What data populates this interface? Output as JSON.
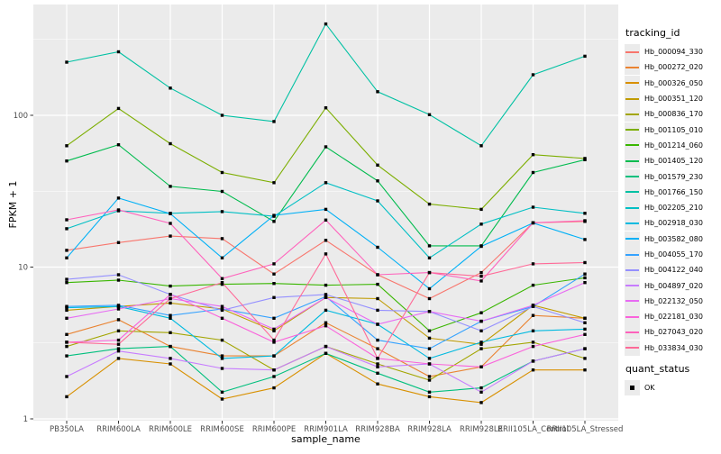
{
  "figure": {
    "x_axis": {
      "label": "sample_name"
    },
    "y_axis": {
      "label": "FPKM + 1",
      "ticks": [
        "1",
        "10",
        "100"
      ],
      "tick_values": [
        1,
        10,
        100
      ]
    },
    "legend": {
      "tracking_title": "tracking_id",
      "quant_title": "quant_status",
      "quant_value": "OK"
    },
    "colors": {
      "panel_bg": "#ebebeb",
      "grid": "#ffffff",
      "tick_text": "#4d4d4d",
      "marker": "#000000"
    }
  },
  "chart_data": {
    "type": "line",
    "title": "",
    "xlabel": "sample_name",
    "ylabel": "FPKM + 1",
    "yscale": "log10",
    "ylim": [
      1,
      530
    ],
    "grid": "on",
    "legend_position": "right",
    "marker": "black-square",
    "x": [
      "PB350LA",
      "RRIM600LA",
      "RRIM600LE",
      "RRIM600SE",
      "RRIM600PE",
      "RRIM901LA",
      "RRIM928BA",
      "RRIM928LA",
      "RRIM928LE",
      "RRII105LA_Control",
      "RRII105LA_Stressed"
    ],
    "series": [
      {
        "name": "Hb_000094_330",
        "color": "#F8766D",
        "values": [
          12.9,
          14.5,
          16,
          15.4,
          9,
          15,
          8.9,
          6.2,
          9.2,
          19.6,
          20
        ]
      },
      {
        "name": "Hb_000272_020",
        "color": "#EA8331",
        "values": [
          3.6,
          4.5,
          3,
          2.6,
          2.6,
          4.3,
          2.9,
          1.9,
          2.2,
          4.8,
          4.6
        ]
      },
      {
        "name": "Hb_000326_050",
        "color": "#D89000",
        "values": [
          1.4,
          2.5,
          2.3,
          1.35,
          1.6,
          2.7,
          1.7,
          1.4,
          1.28,
          2.1,
          2.1
        ]
      },
      {
        "name": "Hb_000351_120",
        "color": "#C09B00",
        "values": [
          5.2,
          5.5,
          5.8,
          5.3,
          3.8,
          6.3,
          6.2,
          3.4,
          3.1,
          5.6,
          4.6
        ]
      },
      {
        "name": "Hb_000836_170",
        "color": "#A3A500",
        "values": [
          3,
          3.8,
          3.7,
          3.3,
          2.1,
          3,
          2.3,
          1.8,
          2.9,
          3.2,
          2.5
        ]
      },
      {
        "name": "Hb_001105_010",
        "color": "#7CAE00",
        "values": [
          63,
          111,
          65,
          42,
          36,
          112,
          47,
          26,
          24,
          55,
          52
        ]
      },
      {
        "name": "Hb_001214_060",
        "color": "#39B600",
        "values": [
          7.9,
          8.2,
          7.5,
          7.7,
          7.8,
          7.6,
          7.7,
          3.8,
          5,
          7.6,
          8.5
        ]
      },
      {
        "name": "Hb_001405_120",
        "color": "#00BB4E",
        "values": [
          50,
          64,
          34,
          31.5,
          20,
          62,
          37,
          13.8,
          13.8,
          42,
          51
        ]
      },
      {
        "name": "Hb_001579_230",
        "color": "#00BF7D",
        "values": [
          2.6,
          2.9,
          3,
          1.5,
          1.9,
          2.7,
          2,
          1.5,
          1.6,
          2.4,
          2.9
        ]
      },
      {
        "name": "Hb_001766_150",
        "color": "#00C1A3",
        "values": [
          224,
          262,
          151,
          100,
          91,
          400,
          143,
          101,
          63,
          185,
          245
        ]
      },
      {
        "name": "Hb_002205_210",
        "color": "#00BFC4",
        "values": [
          17.9,
          23.5,
          22.6,
          23.2,
          21.6,
          36,
          27.3,
          11.5,
          19.2,
          24.8,
          22.6
        ]
      },
      {
        "name": "Hb_002918_030",
        "color": "#00BAE0",
        "values": [
          5.4,
          5.5,
          4.6,
          2.5,
          2.6,
          5.2,
          4.2,
          2.5,
          3.2,
          3.8,
          3.9
        ]
      },
      {
        "name": "Hb_003582_080",
        "color": "#00B0F6",
        "values": [
          11.5,
          28.5,
          22.5,
          11.5,
          21.9,
          24,
          13.5,
          7.2,
          13.7,
          19.5,
          15.2
        ]
      },
      {
        "name": "Hb_004055_170",
        "color": "#35A2FF",
        "values": [
          5.5,
          5.6,
          4.8,
          5.3,
          4.6,
          6.4,
          3.3,
          2.9,
          4.4,
          5.5,
          9
        ]
      },
      {
        "name": "Hb_004122_040",
        "color": "#9590FF",
        "values": [
          8.3,
          8.9,
          6.6,
          5.2,
          6.3,
          6.6,
          5.2,
          5.1,
          3.8,
          5.5,
          4.3
        ]
      },
      {
        "name": "Hb_004897_020",
        "color": "#C77CFF",
        "values": [
          1.9,
          2.8,
          2.5,
          2.15,
          2.1,
          3,
          2.2,
          2.3,
          1.5,
          2.4,
          2.9
        ]
      },
      {
        "name": "Hb_022132_050",
        "color": "#E76BF3",
        "values": [
          4.6,
          5.3,
          6.2,
          5.5,
          3.9,
          6.3,
          4.2,
          5.1,
          4.4,
          5.6,
          7.9
        ]
      },
      {
        "name": "Hb_022181_030",
        "color": "#FA62DB",
        "values": [
          3.2,
          3.3,
          6.6,
          4.6,
          3.2,
          4.1,
          2.5,
          2.3,
          2.2,
          3,
          3.6
        ]
      },
      {
        "name": "Hb_027043_020",
        "color": "#FF62BC",
        "values": [
          20.5,
          23.8,
          19.4,
          8.4,
          10.5,
          20.4,
          8.9,
          9.2,
          8.1,
          19.6,
          20.2
        ]
      },
      {
        "name": "Hb_033834_030",
        "color": "#FF6A98",
        "values": [
          3.2,
          3.1,
          6.2,
          7.9,
          3.3,
          12.2,
          2.5,
          9.2,
          8.7,
          10.5,
          10.7
        ]
      }
    ]
  }
}
